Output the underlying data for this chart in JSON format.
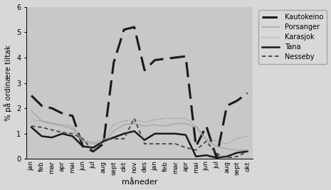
{
  "months": [
    "jan",
    "feb",
    "mar",
    "apr",
    "mai",
    "jun",
    "jul",
    "aug",
    "sept",
    "okt",
    "nov",
    "des",
    "jan",
    "feb",
    "mar",
    "apr",
    "mai",
    "jun",
    "jul",
    "aug",
    "sept",
    "okt"
  ],
  "kautokeino": [
    2.5,
    2.1,
    2.0,
    1.8,
    1.7,
    0.5,
    0.3,
    0.6,
    3.8,
    5.1,
    5.2,
    3.5,
    3.9,
    3.95,
    4.0,
    4.05,
    0.5,
    1.3,
    0.05,
    2.1,
    2.3,
    2.6
  ],
  "porsanger": [
    1.9,
    1.5,
    1.4,
    1.3,
    1.2,
    0.7,
    0.6,
    0.65,
    1.1,
    1.35,
    1.4,
    1.3,
    1.35,
    1.3,
    1.4,
    1.4,
    1.25,
    0.75,
    0.5,
    0.4,
    0.35,
    0.35
  ],
  "karasjok": [
    1.55,
    1.5,
    1.4,
    1.35,
    1.3,
    0.75,
    0.65,
    0.75,
    1.35,
    1.5,
    1.55,
    1.45,
    1.55,
    1.6,
    1.6,
    1.6,
    1.3,
    0.8,
    0.7,
    0.6,
    0.8,
    0.9
  ],
  "tana": [
    1.25,
    0.9,
    0.85,
    1.0,
    0.9,
    0.5,
    0.45,
    0.7,
    0.85,
    1.0,
    1.1,
    0.75,
    1.0,
    1.0,
    1.0,
    0.95,
    0.1,
    0.15,
    0.05,
    0.1,
    0.25,
    0.3
  ],
  "nesseby": [
    1.3,
    1.25,
    1.15,
    1.05,
    1.0,
    0.8,
    0.3,
    0.75,
    0.8,
    0.8,
    1.6,
    0.6,
    0.6,
    0.6,
    0.6,
    0.45,
    0.35,
    0.7,
    0.2,
    0.05,
    0.1,
    0.3
  ],
  "ylabel": "% på ordinære tiltak",
  "xlabel": "måneder",
  "ylim": [
    0,
    6
  ],
  "yticks": [
    0,
    1,
    2,
    3,
    4,
    5,
    6
  ],
  "bg_color": "#c8c8c8",
  "legend_labels": [
    "Kautokeino",
    "Porsanger",
    "Karasjok",
    "Tana",
    "Nesseby"
  ]
}
